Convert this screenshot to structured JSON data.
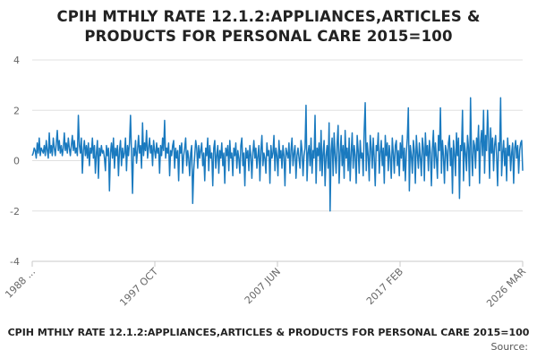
{
  "chart_data": {
    "type": "line",
    "title_lines": [
      "CPIH MTHLY RATE 12.1.2:APPLIANCES,ARTICLES &",
      "PRODUCTS FOR PERSONAL CARE 2015=100"
    ],
    "footer_title": "CPIH MTHLY RATE 12.1.2:APPLIANCES,ARTICLES & PRODUCTS FOR PERSONAL CARE 2015=100",
    "source_label": "Source:",
    "xlabel": "",
    "ylabel": "",
    "ylim": [
      -4,
      4
    ],
    "y_ticks": [
      4,
      2,
      0,
      -2,
      -4
    ],
    "x_tick_labels": [
      "1988 ...",
      "1997 OCT",
      "2007 JUN",
      "2017 FEB",
      "2026 MAR"
    ],
    "x_range": [
      "1988 JAN",
      "2026 MAR"
    ],
    "grid": true,
    "colors": {
      "line": "#1a7abf",
      "grid": "#e0e0e0",
      "axis": "#c8c8c8"
    },
    "series": [
      {
        "name": "CPIH MTHLY RATE 12.1.2:APPLIANCES,ARTICLES & PRODUCTS FOR PERSONAL CARE 2015=100",
        "values": [
          0.2,
          0.3,
          0.5,
          0.4,
          0.1,
          0.7,
          0.3,
          0.9,
          0.2,
          0.5,
          0.4,
          0.3,
          0.6,
          0.2,
          0.8,
          0.4,
          0.1,
          1.1,
          0.3,
          0.6,
          0.2,
          0.9,
          0.5,
          0.2,
          0.7,
          1.2,
          0.4,
          0.8,
          0.3,
          0.6,
          0.2,
          0.5,
          1.1,
          0.4,
          0.7,
          0.3,
          0.9,
          0.5,
          0.2,
          0.6,
          1.0,
          0.4,
          0.8,
          0.3,
          0.5,
          0.2,
          1.8,
          0.6,
          0.3,
          0.9,
          -0.5,
          0.4,
          0.8,
          0.2,
          0.6,
          0.1,
          0.7,
          -0.2,
          0.5,
          0.3,
          0.9,
          0.1,
          0.6,
          -0.5,
          0.3,
          0.8,
          -0.7,
          0.5,
          0.2,
          0.6,
          0.3,
          0.4,
          0.1,
          -0.4,
          0.6,
          0.2,
          0.5,
          -1.2,
          0.3,
          0.7,
          0.1,
          0.9,
          -0.3,
          0.5,
          0.2,
          0.6,
          -0.6,
          0.4,
          0.8,
          -0.2,
          0.5,
          0.1,
          0.3,
          0.9,
          -0.4,
          0.6,
          0.2,
          0.7,
          1.8,
          0.3,
          -1.3,
          0.5,
          0.2,
          0.8,
          -0.1,
          0.4,
          1.0,
          0.3,
          0.6,
          -0.3,
          1.5,
          0.2,
          0.7,
          0.4,
          1.2,
          0.1,
          0.5,
          0.9,
          0.3,
          0.6,
          -0.2,
          0.8,
          0.4,
          0.1,
          0.7,
          0.3,
          0.5,
          -0.5,
          0.6,
          0.2,
          0.9,
          0.4,
          1.6,
          0.1,
          0.5,
          0.3,
          0.7,
          -0.6,
          0.4,
          0.2,
          0.6,
          0.8,
          -0.3,
          0.5,
          0.1,
          0.4,
          -0.8,
          0.6,
          0.3,
          0.7,
          -0.5,
          0.2,
          0.5,
          0.9,
          -0.2,
          0.4,
          0.1,
          -0.6,
          0.3,
          0.6,
          -1.7,
          -0.4,
          0.2,
          0.8,
          0.5,
          -0.3,
          0.6,
          0.1,
          0.4,
          0.7,
          -0.2,
          0.3,
          -0.8,
          0.5,
          0.2,
          0.9,
          -0.4,
          0.6,
          0.1,
          0.3,
          -1.0,
          0.5,
          0.8,
          -0.3,
          0.2,
          0.6,
          -0.5,
          0.4,
          0.1,
          0.7,
          -0.2,
          0.3,
          -0.9,
          0.5,
          0.2,
          0.6,
          -0.4,
          0.8,
          0.1,
          0.3,
          -0.6,
          0.5,
          0.2,
          0.7,
          -0.3,
          0.4,
          0.1,
          -0.5,
          0.6,
          0.9,
          -0.2,
          0.3,
          -1.0,
          0.5,
          0.1,
          0.4,
          -0.4,
          0.6,
          0.2,
          -0.7,
          0.3,
          0.8,
          0.1,
          0.5,
          -0.3,
          0.2,
          0.6,
          -0.8,
          0.4,
          1.0,
          -0.2,
          0.3,
          0.1,
          -0.5,
          0.7,
          0.2,
          0.4,
          -0.9,
          0.6,
          0.1,
          0.3,
          1.0,
          -0.4,
          0.5,
          0.2,
          -0.6,
          0.8,
          0.1,
          0.4,
          -0.3,
          0.6,
          0.2,
          -1.0,
          0.5,
          0.3,
          0.1,
          0.7,
          -0.5,
          0.4,
          0.9,
          -0.2,
          0.3,
          0.6,
          -0.7,
          0.2,
          0.5,
          0.1,
          -0.3,
          0.8,
          0.4,
          -0.6,
          0.2,
          0.5,
          2.2,
          -0.8,
          0.3,
          0.6,
          -0.2,
          0.9,
          -0.5,
          0.4,
          0.1,
          1.8,
          -0.9,
          0.5,
          0.2,
          0.7,
          -0.4,
          1.2,
          -0.6,
          0.3,
          0.8,
          -1.0,
          0.2,
          0.6,
          -0.3,
          1.5,
          -2.0,
          0.4,
          0.9,
          -0.6,
          1.1,
          0.2,
          -0.5,
          0.7,
          1.4,
          -0.9,
          0.3,
          1.0,
          -0.2,
          0.6,
          -0.7,
          1.2,
          0.1,
          0.5,
          -0.4,
          0.9,
          -0.8,
          0.3,
          1.1,
          -0.3,
          0.6,
          0.2,
          -0.9,
          1.0,
          0.4,
          -0.5,
          0.8,
          0.1,
          0.3,
          -0.6,
          1.2,
          2.3,
          -0.4,
          0.7,
          0.2,
          -0.8,
          1.0,
          0.5,
          -0.3,
          0.9,
          0.1,
          -1.0,
          0.6,
          0.4,
          1.1,
          -0.5,
          0.3,
          0.8,
          -0.2,
          0.5,
          -0.9,
          1.0,
          0.2,
          0.7,
          -0.4,
          0.6,
          0.1,
          -0.7,
          0.9,
          0.3,
          -0.5,
          0.6,
          0.8,
          -0.2,
          0.4,
          -0.6,
          0.7,
          0.1,
          1.0,
          -0.4,
          0.5,
          -0.8,
          0.3,
          0.9,
          2.1,
          -1.2,
          0.6,
          0.2,
          -0.5,
          0.8,
          0.4,
          -0.9,
          1.0,
          0.3,
          -0.3,
          0.7,
          0.1,
          -0.6,
          0.9,
          0.5,
          -0.8,
          1.1,
          0.2,
          0.6,
          -0.4,
          0.8,
          0.3,
          -1.0,
          0.5,
          1.2,
          -0.3,
          0.7,
          0.1,
          -0.7,
          1.0,
          0.4,
          2.1,
          -0.5,
          0.8,
          0.2,
          -0.9,
          0.6,
          0.4,
          -0.4,
          0.7,
          1.0,
          -0.2,
          0.5,
          -1.3,
          0.8,
          0.3,
          -0.6,
          1.1,
          0.2,
          0.9,
          -1.5,
          0.6,
          0.4,
          2.0,
          -0.8,
          0.7,
          0.3,
          -0.4,
          1.0,
          0.5,
          -1.0,
          2.5,
          0.3,
          -0.6,
          0.8,
          0.6,
          -0.3,
          0.9,
          0.4,
          1.4,
          -0.9,
          0.7,
          1.2,
          0.2,
          2.0,
          -0.5,
          1.0,
          0.4,
          2.0,
          0.8,
          -0.7,
          1.3,
          0.3,
          0.9,
          -0.4,
          0.6,
          1.0,
          0.2,
          -1.0,
          0.7,
          0.4,
          2.5,
          -0.6,
          0.3,
          0.8,
          -0.2,
          0.5,
          -0.8,
          0.9,
          0.2,
          0.6,
          -0.4,
          0.3,
          0.7,
          -0.9,
          0.5,
          0.8,
          0.1,
          0.6,
          -0.5,
          0.4,
          0.7,
          0.8,
          -0.4
        ]
      }
    ]
  }
}
